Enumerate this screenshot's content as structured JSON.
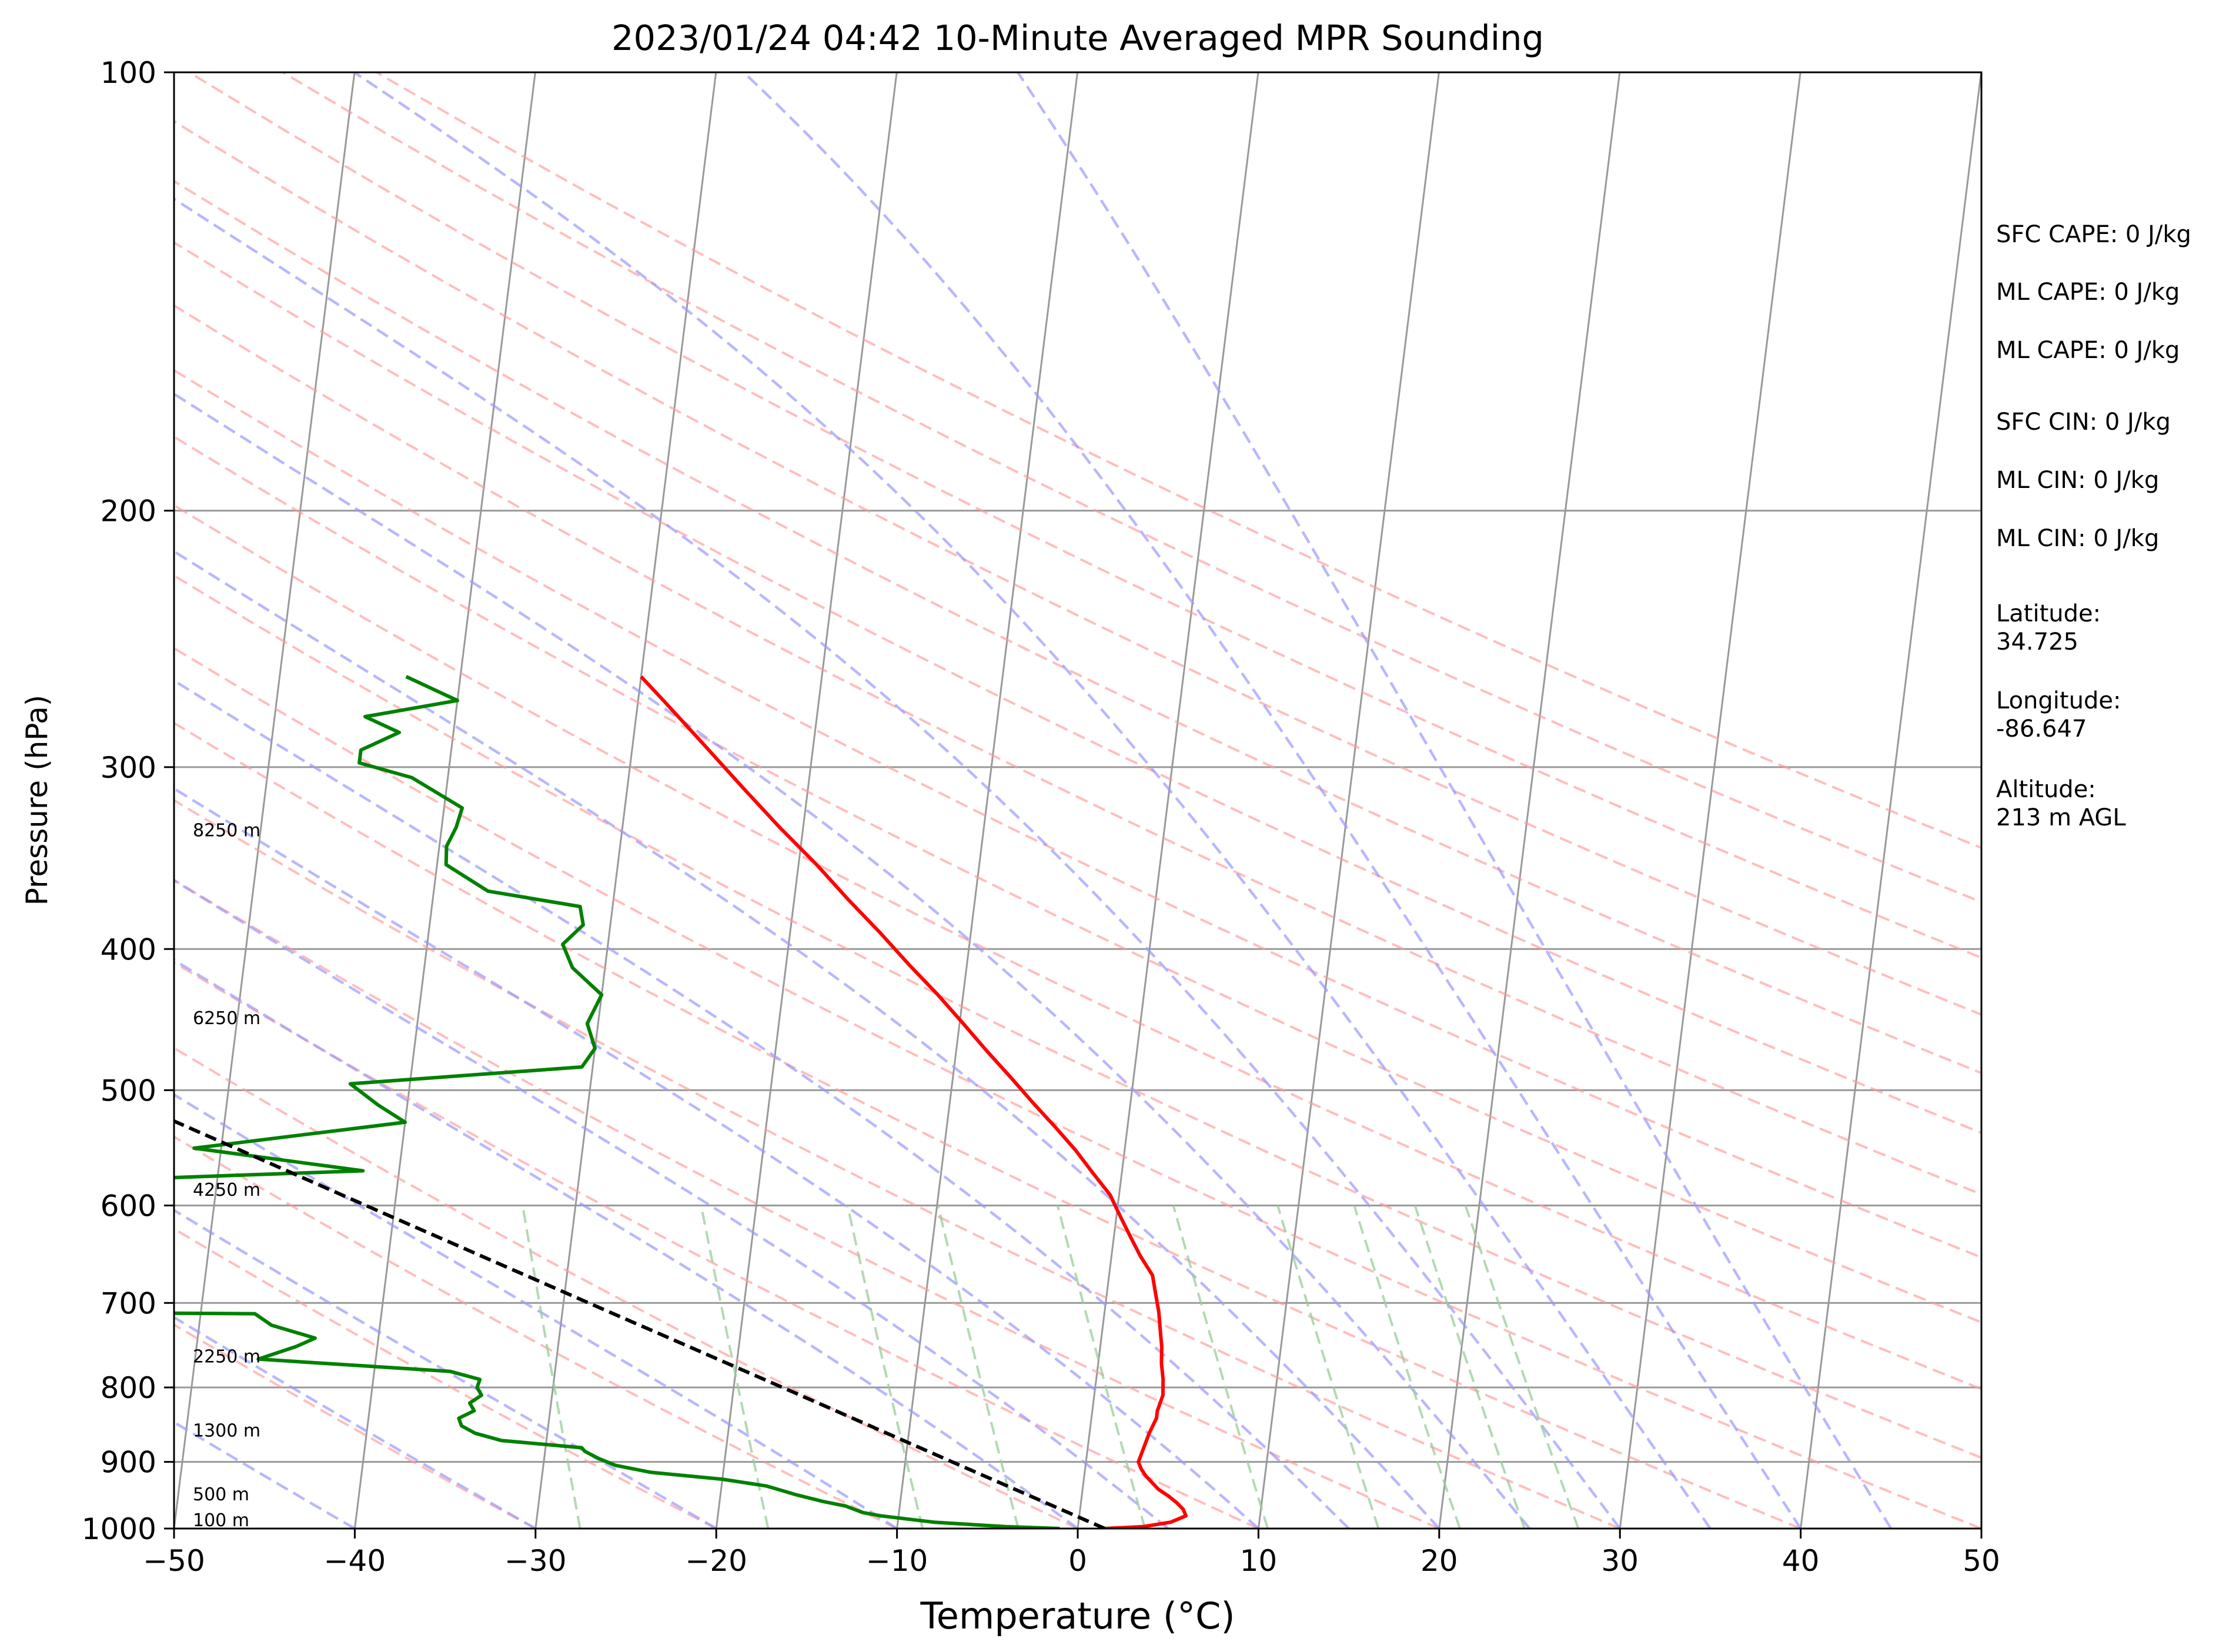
{
  "chart_data": {
    "type": "line",
    "title": "2023/01/24 04:42 10-Minute Averaged MPR Sounding",
    "xlabel": "Temperature (°C)",
    "ylabel": "Pressure (hPa)",
    "xlim": [
      -50,
      50
    ],
    "ylim": [
      1000,
      100
    ],
    "y_scale": "log",
    "skew": true,
    "x_ticks": [
      "−50",
      "−40",
      "−30",
      "−20",
      "−10",
      "0",
      "10",
      "20",
      "30",
      "40",
      "50"
    ],
    "y_ticks": [
      {
        "p": 100,
        "label": "100"
      },
      {
        "p": 200,
        "label": "200"
      },
      {
        "p": 300,
        "label": "300"
      },
      {
        "p": 400,
        "label": "400"
      },
      {
        "p": 500,
        "label": "500"
      },
      {
        "p": 600,
        "label": "600"
      },
      {
        "p": 700,
        "label": "700"
      },
      {
        "p": 800,
        "label": "800"
      },
      {
        "p": 900,
        "label": "900"
      },
      {
        "p": 1000,
        "label": "1000"
      }
    ],
    "height_labels": [
      {
        "p": 336,
        "label": "8250 m"
      },
      {
        "p": 452,
        "label": "6250 m"
      },
      {
        "p": 593,
        "label": "4250 m"
      },
      {
        "p": 772,
        "label": "2250 m"
      },
      {
        "p": 868,
        "label": "1300 m"
      },
      {
        "p": 960,
        "label": "500 m"
      },
      {
        "p": 1000,
        "label": "100 m"
      }
    ],
    "annotations": [
      {
        "id": "sfc-cape",
        "lines": [
          "SFC CAPE: 0 J/kg"
        ]
      },
      {
        "id": "ml-cape-1",
        "lines": [
          "ML CAPE: 0 J/kg"
        ]
      },
      {
        "id": "ml-cape-2",
        "lines": [
          "ML CAPE: 0 J/kg"
        ]
      },
      {
        "id": "sfc-cin",
        "lines": [
          "SFC CIN: 0 J/kg"
        ]
      },
      {
        "id": "ml-cin-1",
        "lines": [
          "ML CIN: 0 J/kg"
        ]
      },
      {
        "id": "ml-cin-2",
        "lines": [
          "ML CIN: 0 J/kg"
        ]
      },
      {
        "id": "latitude",
        "lines": [
          "Latitude:",
          "34.725"
        ]
      },
      {
        "id": "longitude",
        "lines": [
          "Longitude:",
          "-86.647"
        ]
      },
      {
        "id": "altitude",
        "lines": [
          "Altitude:",
          "213 m AGL"
        ]
      }
    ],
    "colors": {
      "temperature": "#ff0000",
      "dewpoint": "#008000",
      "parcel": "#000000",
      "dry_adiabats": "#ff9999",
      "moist_adiabats": "#9999ff",
      "mixing_ratio": "#99cc99",
      "isotherms": "#999999",
      "isobars": "#999999"
    },
    "series": [
      {
        "id": "temperature",
        "points": [
          [
            1000,
            1.5
          ],
          [
            997,
            3.6
          ],
          [
            990,
            5.1
          ],
          [
            980,
            5.9
          ],
          [
            970,
            5.7
          ],
          [
            960,
            5.3
          ],
          [
            950,
            4.8
          ],
          [
            940,
            4.2
          ],
          [
            930,
            3.8
          ],
          [
            920,
            3.4
          ],
          [
            910,
            3.1
          ],
          [
            900,
            2.9
          ],
          [
            880,
            3.1
          ],
          [
            860,
            3.3
          ],
          [
            840,
            3.6
          ],
          [
            830,
            3.6
          ],
          [
            810,
            3.8
          ],
          [
            790,
            3.7
          ],
          [
            770,
            3.5
          ],
          [
            750,
            3.4
          ],
          [
            730,
            3.2
          ],
          [
            710,
            3.0
          ],
          [
            690,
            2.7
          ],
          [
            670,
            2.4
          ],
          [
            650,
            1.6
          ],
          [
            630,
            0.9
          ],
          [
            610,
            0.2
          ],
          [
            590,
            -0.5
          ],
          [
            570,
            -1.6
          ],
          [
            550,
            -2.7
          ],
          [
            530,
            -4.0
          ],
          [
            510,
            -5.4
          ],
          [
            490,
            -6.8
          ],
          [
            470,
            -8.3
          ],
          [
            450,
            -9.8
          ],
          [
            430,
            -11.4
          ],
          [
            410,
            -13.2
          ],
          [
            390,
            -15.0
          ],
          [
            370,
            -17.0
          ],
          [
            350,
            -19.0
          ],
          [
            330,
            -21.3
          ],
          [
            310,
            -23.6
          ],
          [
            290,
            -26.0
          ],
          [
            270,
            -28.6
          ],
          [
            260,
            -30.0
          ]
        ]
      },
      {
        "id": "dewpoint",
        "points": [
          [
            1000,
            -1.0
          ],
          [
            997,
            -4.0
          ],
          [
            990,
            -8.0
          ],
          [
            980,
            -11.0
          ],
          [
            975,
            -12.0
          ],
          [
            965,
            -13.0
          ],
          [
            958,
            -14.3
          ],
          [
            948,
            -15.8
          ],
          [
            935,
            -17.5
          ],
          [
            925,
            -20.0
          ],
          [
            915,
            -24.0
          ],
          [
            905,
            -26.0
          ],
          [
            895,
            -27.0
          ],
          [
            885,
            -27.8
          ],
          [
            880,
            -28.0
          ],
          [
            870,
            -32.5
          ],
          [
            860,
            -34.0
          ],
          [
            850,
            -34.8
          ],
          [
            840,
            -35.0
          ],
          [
            830,
            -34.2
          ],
          [
            820,
            -34.5
          ],
          [
            810,
            -33.9
          ],
          [
            800,
            -34.2
          ],
          [
            790,
            -34.1
          ],
          [
            780,
            -35.8
          ],
          [
            765,
            -46.5
          ],
          [
            750,
            -44.5
          ],
          [
            740,
            -43.5
          ],
          [
            725,
            -46.0
          ],
          [
            712,
            -47.0
          ],
          [
            710,
            -62.0
          ],
          [
            575,
            -54.0
          ],
          [
            568,
            -42.0
          ],
          [
            548,
            -51.5
          ],
          [
            526,
            -40.0
          ],
          [
            512,
            -41.6
          ],
          [
            495,
            -43.3
          ],
          [
            482,
            -30.6
          ],
          [
            468,
            -30.0
          ],
          [
            450,
            -30.6
          ],
          [
            430,
            -30.0
          ],
          [
            412,
            -31.8
          ],
          [
            397,
            -32.5
          ],
          [
            385,
            -31.5
          ],
          [
            374,
            -31.8
          ],
          [
            365,
            -37.0
          ],
          [
            350,
            -39.5
          ],
          [
            340,
            -39.6
          ],
          [
            330,
            -39.2
          ],
          [
            320,
            -39.0
          ],
          [
            305,
            -42.0
          ],
          [
            298,
            -45.0
          ],
          [
            292,
            -45.0
          ],
          [
            284,
            -43.0
          ],
          [
            277,
            -45.0
          ],
          [
            270,
            -40.0
          ],
          [
            260,
            -43.0
          ]
        ]
      },
      {
        "id": "parcel",
        "points": [
          [
            1000,
            1.5
          ],
          [
            900,
            -7.4
          ],
          [
            800,
            -17.3
          ],
          [
            700,
            -28.6
          ],
          [
            600,
            -41.6
          ],
          [
            500,
            -56.9
          ],
          [
            400,
            -75.4
          ],
          [
            270,
            -108.4
          ]
        ]
      }
    ],
    "background": {
      "isobars": [
        100,
        200,
        300,
        400,
        500,
        600,
        700,
        800,
        900,
        1000
      ],
      "isotherms": [
        -150,
        -140,
        -130,
        -120,
        -110,
        -100,
        -90,
        -80,
        -70,
        -60,
        -50,
        -40,
        -30,
        -20,
        -10,
        0,
        10,
        20,
        30,
        40,
        50
      ],
      "dry_adiabats_theta_c": [
        -30,
        -20,
        -10,
        0,
        10,
        20,
        30,
        40,
        50,
        60,
        70,
        80,
        90,
        100,
        110,
        120,
        130,
        140,
        150,
        160
      ],
      "moist_adiabats_start_c": [
        -40,
        -30,
        -20,
        -10,
        0,
        5,
        10,
        15,
        20,
        25,
        30,
        35,
        40,
        45
      ],
      "mixing_ratio_gkg": [
        0.4,
        1,
        2,
        3,
        5,
        8,
        12,
        16,
        20,
        24
      ]
    }
  }
}
